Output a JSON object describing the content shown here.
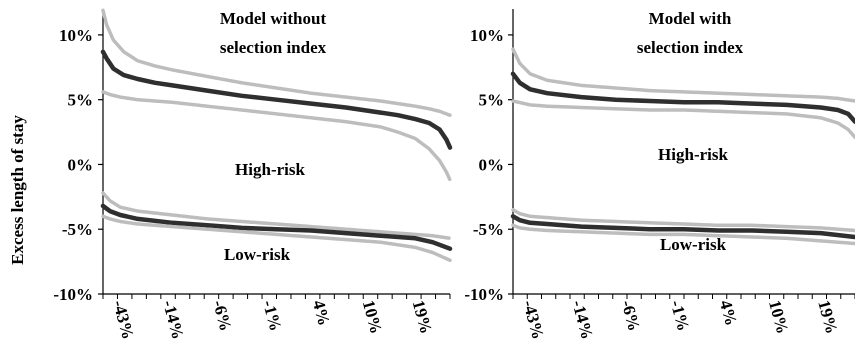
{
  "shared": {
    "ylabel": "Excess length of stay",
    "ylim": [
      -10,
      12
    ],
    "yticks": [
      -10,
      -5,
      0,
      5,
      10
    ],
    "ytick_labels": [
      "-10%",
      "-5%",
      "0%",
      "5%",
      "10%"
    ],
    "xtick_labels": [
      "-43%",
      "-14%",
      "-6%",
      "-1%",
      "4%",
      "10%",
      "19%"
    ]
  },
  "chart_data": [
    {
      "type": "line",
      "title": "Model without selection index",
      "title_lines": [
        "Model without",
        "selection index"
      ],
      "annotations": [
        "High-risk",
        "Low-risk"
      ],
      "xlim": [
        0,
        100
      ],
      "ylim": [
        -10,
        12
      ],
      "series": [
        {
          "group": "High-risk",
          "role": "upper",
          "x": [
            0,
            1,
            3,
            6,
            10,
            15,
            20,
            30,
            40,
            50,
            60,
            70,
            80,
            85,
            90,
            94,
            97,
            99,
            100
          ],
          "y": [
            11.9,
            10.8,
            9.6,
            8.7,
            8.0,
            7.6,
            7.3,
            6.8,
            6.3,
            5.9,
            5.5,
            5.2,
            4.9,
            4.7,
            4.5,
            4.3,
            4.1,
            3.9,
            3.8
          ]
        },
        {
          "group": "High-risk",
          "role": "estimate",
          "x": [
            0,
            1,
            3,
            6,
            10,
            15,
            20,
            30,
            40,
            50,
            60,
            70,
            80,
            85,
            90,
            94,
            97,
            99,
            100
          ],
          "y": [
            8.7,
            8.2,
            7.4,
            6.9,
            6.6,
            6.3,
            6.1,
            5.7,
            5.3,
            5.0,
            4.7,
            4.4,
            4.0,
            3.8,
            3.5,
            3.2,
            2.7,
            1.9,
            1.3
          ]
        },
        {
          "group": "High-risk",
          "role": "lower",
          "x": [
            0,
            2,
            5,
            10,
            20,
            30,
            40,
            50,
            60,
            70,
            80,
            85,
            90,
            94,
            97,
            99,
            100
          ],
          "y": [
            5.6,
            5.4,
            5.2,
            5.0,
            4.8,
            4.5,
            4.2,
            3.9,
            3.6,
            3.3,
            2.9,
            2.5,
            2.0,
            1.2,
            0.3,
            -0.6,
            -1.2
          ]
        },
        {
          "group": "Low-risk",
          "role": "upper",
          "x": [
            0,
            2,
            5,
            10,
            20,
            30,
            40,
            50,
            60,
            70,
            80,
            90,
            95,
            100
          ],
          "y": [
            -2.2,
            -2.8,
            -3.3,
            -3.6,
            -3.9,
            -4.2,
            -4.4,
            -4.6,
            -4.8,
            -5.0,
            -5.2,
            -5.4,
            -5.5,
            -5.7
          ]
        },
        {
          "group": "Low-risk",
          "role": "estimate",
          "x": [
            0,
            2,
            5,
            10,
            20,
            30,
            40,
            50,
            60,
            70,
            80,
            90,
            95,
            100
          ],
          "y": [
            -3.2,
            -3.6,
            -3.9,
            -4.2,
            -4.5,
            -4.7,
            -4.9,
            -5.0,
            -5.1,
            -5.3,
            -5.5,
            -5.7,
            -6.0,
            -6.5
          ]
        },
        {
          "group": "Low-risk",
          "role": "lower",
          "x": [
            0,
            2,
            5,
            10,
            20,
            30,
            40,
            50,
            60,
            70,
            80,
            90,
            95,
            100
          ],
          "y": [
            -4.0,
            -4.2,
            -4.4,
            -4.6,
            -4.8,
            -5.0,
            -5.2,
            -5.4,
            -5.6,
            -5.8,
            -6.0,
            -6.4,
            -6.8,
            -7.4
          ]
        }
      ]
    },
    {
      "type": "line",
      "title": "Model with selection index",
      "title_lines": [
        "Model with",
        "selection index"
      ],
      "annotations": [
        "High-risk",
        "Low-risk"
      ],
      "xlim": [
        0,
        100
      ],
      "ylim": [
        -10,
        12
      ],
      "series": [
        {
          "group": "High-risk",
          "role": "upper",
          "x": [
            0,
            2,
            5,
            10,
            20,
            30,
            40,
            50,
            60,
            70,
            80,
            90,
            95,
            100
          ],
          "y": [
            8.9,
            7.8,
            7.0,
            6.5,
            6.1,
            5.9,
            5.7,
            5.6,
            5.5,
            5.4,
            5.3,
            5.2,
            5.1,
            4.9
          ]
        },
        {
          "group": "High-risk",
          "role": "estimate",
          "x": [
            0,
            2,
            5,
            10,
            20,
            30,
            40,
            50,
            60,
            70,
            80,
            90,
            95,
            98,
            100
          ],
          "y": [
            7.0,
            6.3,
            5.8,
            5.5,
            5.2,
            5.0,
            4.9,
            4.8,
            4.8,
            4.7,
            4.6,
            4.4,
            4.2,
            3.9,
            3.3
          ]
        },
        {
          "group": "High-risk",
          "role": "lower",
          "x": [
            0,
            5,
            10,
            20,
            30,
            40,
            50,
            60,
            70,
            80,
            90,
            95,
            98,
            100
          ],
          "y": [
            4.9,
            4.6,
            4.5,
            4.4,
            4.3,
            4.2,
            4.2,
            4.1,
            4.0,
            3.9,
            3.6,
            3.2,
            2.7,
            2.1
          ]
        },
        {
          "group": "Low-risk",
          "role": "upper",
          "x": [
            0,
            2,
            5,
            10,
            20,
            30,
            40,
            50,
            60,
            70,
            80,
            90,
            100
          ],
          "y": [
            -3.5,
            -3.8,
            -4.0,
            -4.1,
            -4.3,
            -4.4,
            -4.5,
            -4.6,
            -4.7,
            -4.7,
            -4.8,
            -4.9,
            -5.1
          ]
        },
        {
          "group": "Low-risk",
          "role": "estimate",
          "x": [
            0,
            2,
            5,
            10,
            20,
            30,
            40,
            50,
            60,
            70,
            80,
            90,
            100
          ],
          "y": [
            -4.0,
            -4.3,
            -4.5,
            -4.6,
            -4.8,
            -4.9,
            -5.0,
            -5.0,
            -5.1,
            -5.1,
            -5.2,
            -5.3,
            -5.6
          ]
        },
        {
          "group": "Low-risk",
          "role": "lower",
          "x": [
            0,
            2,
            5,
            10,
            20,
            30,
            40,
            50,
            60,
            70,
            80,
            90,
            100
          ],
          "y": [
            -4.7,
            -4.9,
            -5.0,
            -5.1,
            -5.2,
            -5.3,
            -5.4,
            -5.4,
            -5.5,
            -5.6,
            -5.7,
            -5.9,
            -6.1
          ]
        }
      ]
    }
  ],
  "colors": {
    "estimate": "#2f2f2f",
    "band": "#bdbdbd",
    "axis": "#000000"
  }
}
